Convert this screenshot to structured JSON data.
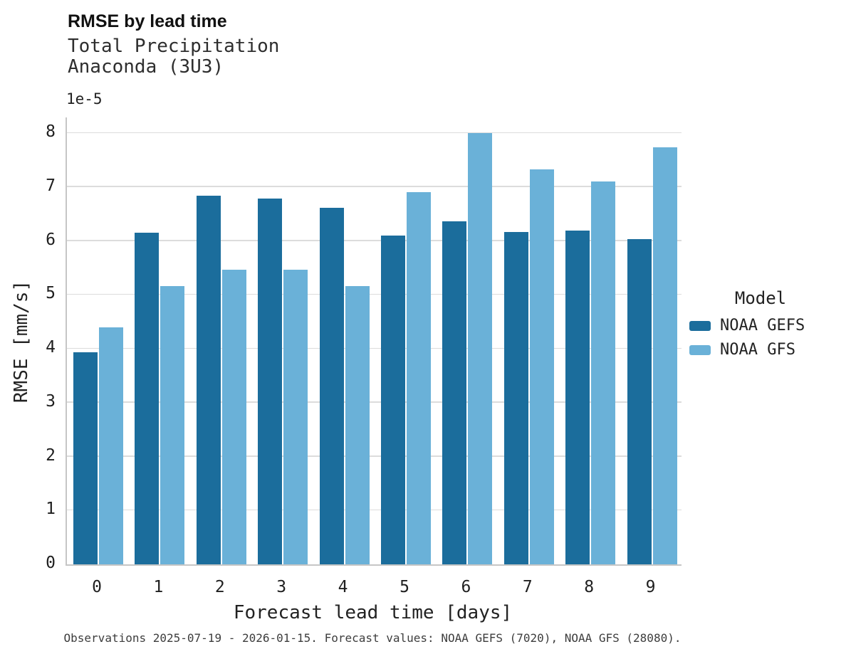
{
  "header": {
    "title": "RMSE by lead time",
    "subtitle_line1": "Total Precipitation",
    "subtitle_line2": "Anaconda (3U3)"
  },
  "chart_data": {
    "type": "bar",
    "title": "RMSE by lead time",
    "subtitle": [
      "Total Precipitation",
      "Anaconda (3U3)"
    ],
    "xlabel": "Forecast lead time [days]",
    "ylabel": "RMSE [mm/s]",
    "y_offset_text": "1e-5",
    "value_scale": "1e-5",
    "categories": [
      "0",
      "1",
      "2",
      "3",
      "4",
      "5",
      "6",
      "7",
      "8",
      "9"
    ],
    "series": [
      {
        "name": "NOAA GEFS",
        "color": "#1b6d9c",
        "values": [
          3.93,
          6.15,
          6.84,
          6.78,
          6.62,
          6.1,
          6.36,
          6.16,
          6.19,
          6.03
        ]
      },
      {
        "name": "NOAA GFS",
        "color": "#6ab1d8",
        "values": [
          4.4,
          5.16,
          5.46,
          5.47,
          5.16,
          6.91,
          8.0,
          7.33,
          7.1,
          7.74
        ]
      }
    ],
    "ylim": [
      0,
      8.29
    ],
    "yticks": [
      0,
      1,
      2,
      3,
      4,
      5,
      6,
      7,
      8
    ],
    "grid": true,
    "legend_title": "Model",
    "legend_position": "right"
  },
  "legend": {
    "title": "Model",
    "entries": [
      {
        "label": "NOAA GEFS",
        "color": "#1b6d9c"
      },
      {
        "label": "NOAA GFS",
        "color": "#6ab1d8"
      }
    ]
  },
  "caption": "Observations 2025-07-19 - 2026-01-15. Forecast values: NOAA GEFS (7020), NOAA GFS (28080)."
}
